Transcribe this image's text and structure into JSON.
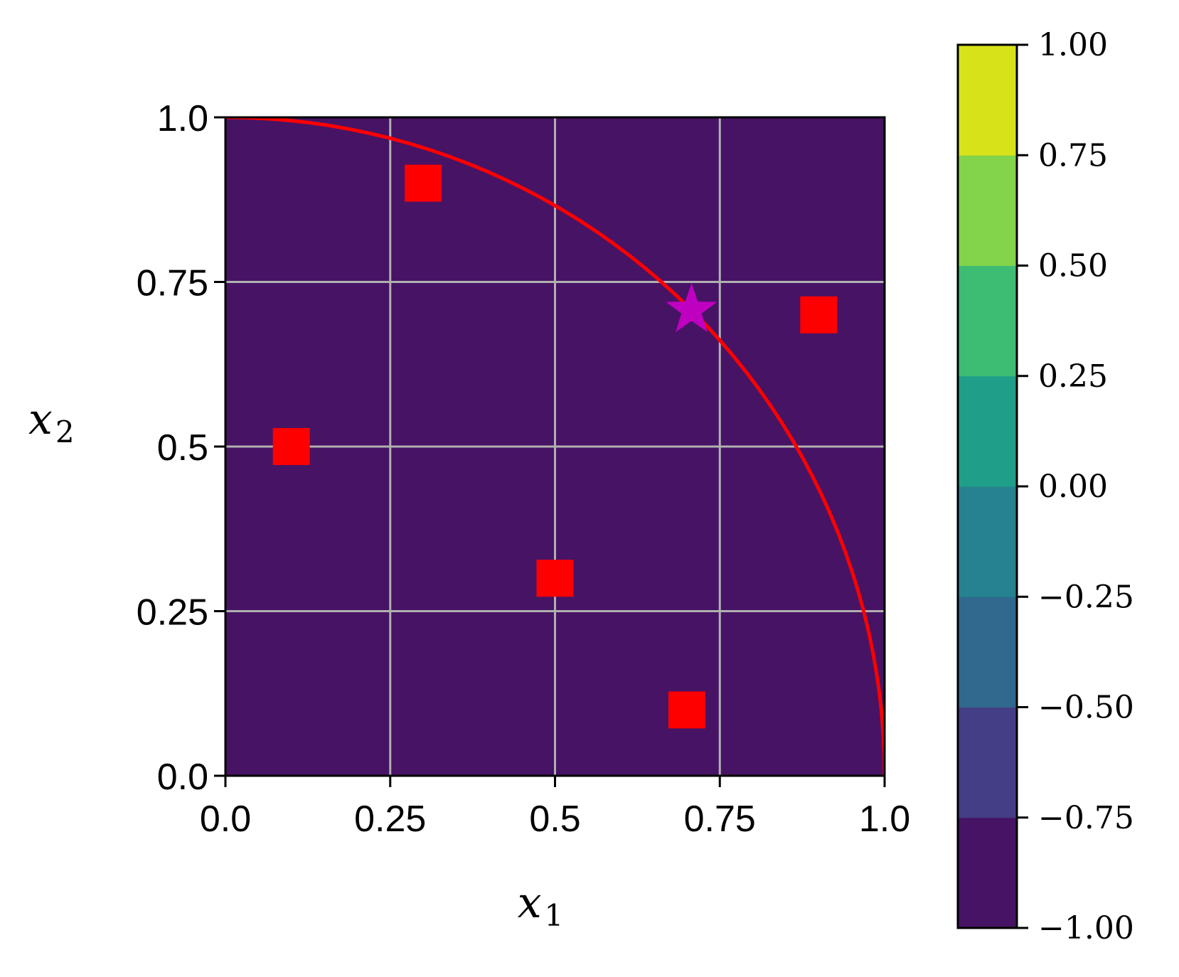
{
  "chart_data": {
    "type": "contour",
    "function": "1 - 2*x1*x2",
    "xlabel": "x1",
    "ylabel": "x2",
    "xlim": [
      0,
      1
    ],
    "ylim": [
      0,
      1
    ],
    "xticks": [
      "0.0",
      "0.25",
      "0.5",
      "0.75",
      "1.0"
    ],
    "yticks": [
      "0.0",
      "0.25",
      "0.5",
      "0.75",
      "1.0"
    ],
    "grid": true,
    "contour_levels": [
      -1.0,
      -0.75,
      -0.5,
      -0.25,
      0.0,
      0.25,
      0.5,
      0.75,
      1.0
    ],
    "level_colors": [
      "#471365",
      "#433e85",
      "#31688e",
      "#26828e",
      "#1f9e89",
      "#3dbc74",
      "#83d34b",
      "#d8e219"
    ],
    "colorbar": {
      "ticks": [
        "1.00",
        "0.75",
        "0.50",
        "0.25",
        "0.00",
        "−0.25",
        "−0.50",
        "−0.75",
        "−1.00"
      ],
      "range": [
        -1.0,
        1.0
      ]
    },
    "constraint_curve": {
      "label": "x1^2 + x2^2 = 1",
      "color": "#ff0000"
    },
    "square_points": {
      "color": "#ff0000",
      "points": [
        {
          "x": 0.1,
          "y": 0.5
        },
        {
          "x": 0.3,
          "y": 0.9
        },
        {
          "x": 0.5,
          "y": 0.3
        },
        {
          "x": 0.7,
          "y": 0.1
        },
        {
          "x": 0.9,
          "y": 0.7
        }
      ]
    },
    "star_point": {
      "color": "#c000c0",
      "x": 0.7071,
      "y": 0.7071
    }
  }
}
